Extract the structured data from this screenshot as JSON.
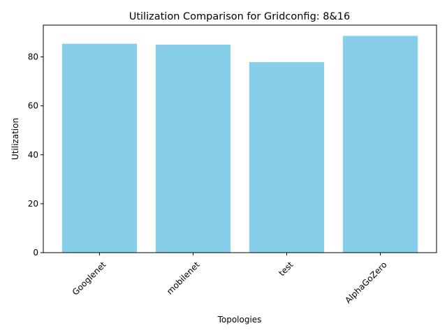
{
  "chart_data": {
    "type": "bar",
    "title": "Utilization Comparison for Gridconfig: 8&16",
    "xlabel": "Topologies",
    "ylabel": "Utilization",
    "categories": [
      "Googlenet",
      "mobilenet",
      "test",
      "AlphaGoZero"
    ],
    "values": [
      85.4,
      85.0,
      77.9,
      88.6
    ],
    "ylim": [
      0,
      93
    ],
    "yticks": [
      0,
      20,
      40,
      60,
      80
    ],
    "bar_color": "#87ceeb",
    "grid": false,
    "legend": "none"
  }
}
